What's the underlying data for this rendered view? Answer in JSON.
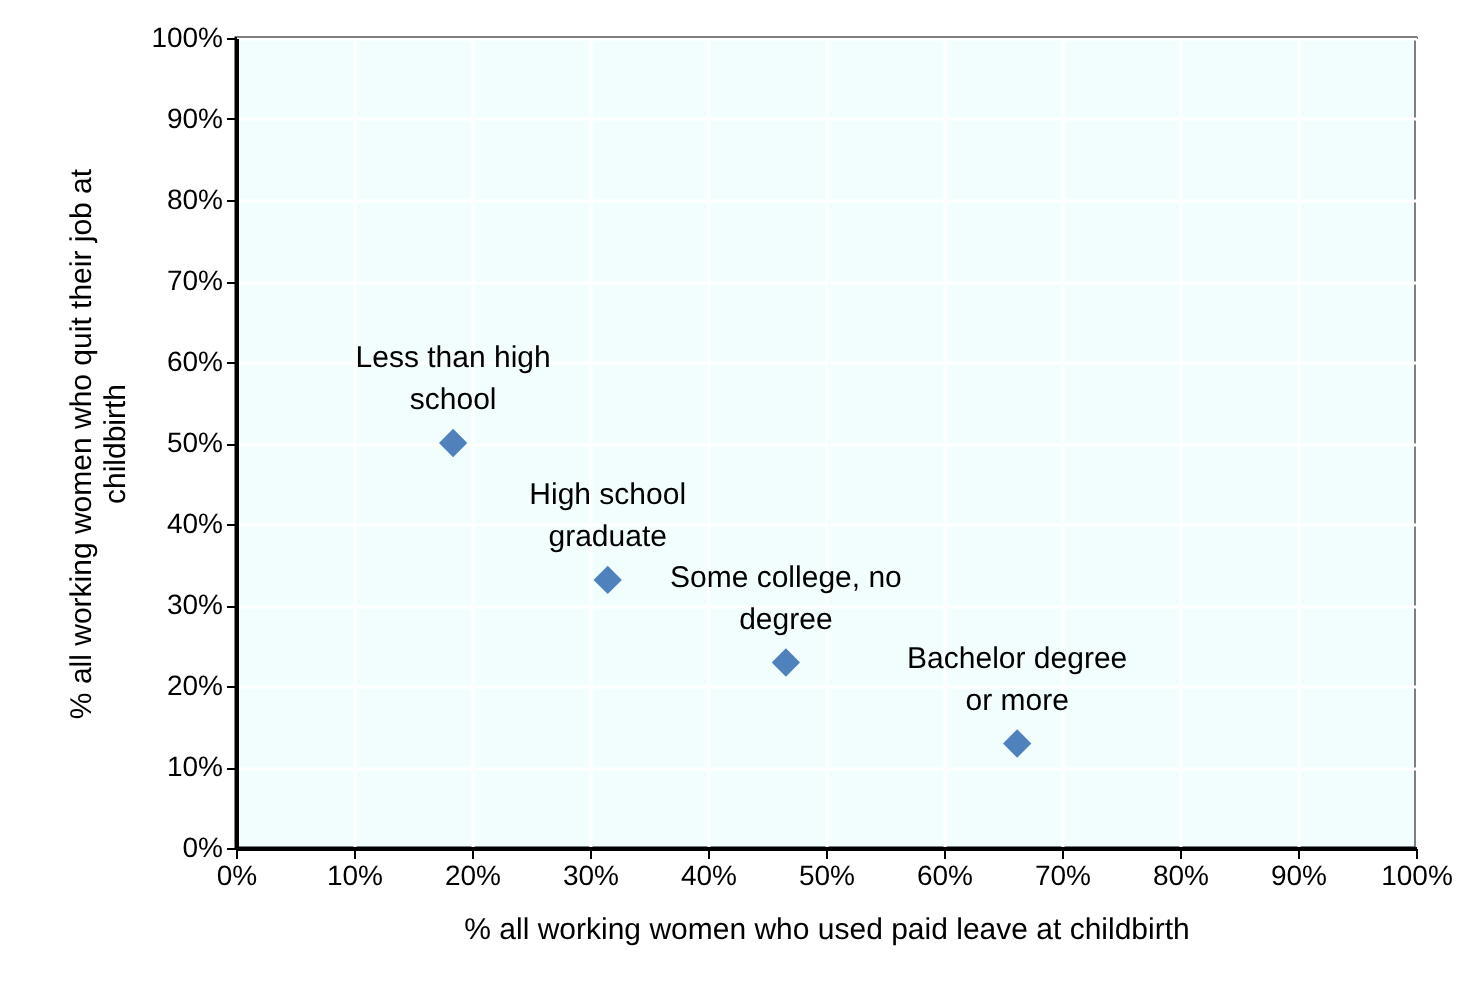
{
  "chart_data": {
    "type": "scatter",
    "xlabel": "% all working women who used paid leave at childbirth",
    "ylabel": "% all working women who quit their job at\nchildbirth",
    "x": [
      18.4,
      31.5,
      46.6,
      66.2
    ],
    "series": [
      {
        "color": "#4f81bd",
        "values": [
          50,
          33.1,
          22.9,
          12.9
        ]
      }
    ],
    "marker": "diamond",
    "xlim": [
      0,
      100
    ],
    "ylim": [
      0,
      100
    ],
    "xticks": [
      {
        "value": 0,
        "label": "0%"
      },
      {
        "value": 10,
        "label": "10%"
      },
      {
        "value": 20,
        "label": "20%"
      },
      {
        "value": 30,
        "label": "30%"
      },
      {
        "value": 40,
        "label": "40%"
      },
      {
        "value": 50,
        "label": "50%"
      },
      {
        "value": 60,
        "label": "60%"
      },
      {
        "value": 70,
        "label": "70%"
      },
      {
        "value": 80,
        "label": "80%"
      },
      {
        "value": 90,
        "label": "90%"
      },
      {
        "value": 100,
        "label": "100%"
      }
    ],
    "yticks": [
      {
        "value": 0,
        "label": "0%"
      },
      {
        "value": 10,
        "label": "10%"
      },
      {
        "value": 20,
        "label": "20%"
      },
      {
        "value": 30,
        "label": "30%"
      },
      {
        "value": 40,
        "label": "40%"
      },
      {
        "value": 50,
        "label": "50%"
      },
      {
        "value": 60,
        "label": "60%"
      },
      {
        "value": 70,
        "label": "70%"
      },
      {
        "value": 80,
        "label": "80%"
      },
      {
        "value": 90,
        "label": "90%"
      },
      {
        "value": 100,
        "label": "100%"
      }
    ],
    "grid": true,
    "annotations": [
      {
        "text": "Less than high\nschool",
        "x": 18.4,
        "y": 50
      },
      {
        "text": "High school\ngraduate",
        "x": 31.5,
        "y": 33.1
      },
      {
        "text": "Some college, no\ndegree",
        "x": 46.6,
        "y": 22.9
      },
      {
        "text": "Bachelor degree\nor more",
        "x": 66.2,
        "y": 12.9
      }
    ]
  }
}
